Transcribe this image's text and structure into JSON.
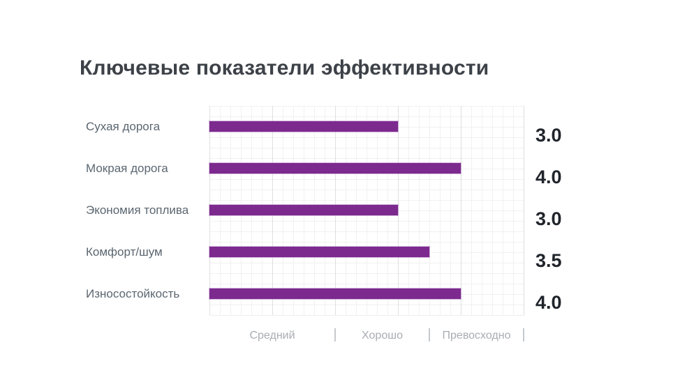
{
  "title": "Ключевые показатели эффективности",
  "colors": {
    "bar": "#7c2a8e",
    "bar_halo": "#b27ec2",
    "title_text": "#3d4248",
    "category_text": "#5b6670",
    "value_text": "#20242b",
    "axis_text": "#a8acb2",
    "grid_minor": "#f1f1f2",
    "grid_major": "#dfdfe1",
    "background": "#ffffff"
  },
  "chart_data": {
    "type": "bar",
    "orientation": "horizontal",
    "title": "Ключевые показатели эффективности",
    "categories": [
      "Сухая дорога",
      "Мокрая дорога",
      "Экономия топлива",
      "Комфорт/шум",
      "Износостойкость"
    ],
    "values": [
      3.0,
      4.0,
      3.0,
      3.5,
      4.0
    ],
    "value_labels": [
      "3.0",
      "4.0",
      "3.0",
      "3.5",
      "4.0"
    ],
    "xlim": [
      0,
      5
    ],
    "x_major_step": 1,
    "x_minor_per_major": 6,
    "grid": true,
    "legend": false,
    "axis_bands": [
      {
        "label": "Средний",
        "from": 0,
        "to": 2
      },
      {
        "label": "Хорошо",
        "from": 2,
        "to": 3.5
      },
      {
        "label": "Превосходно",
        "from": 3.5,
        "to": 5
      }
    ],
    "axis_separator_glyph": "|"
  }
}
